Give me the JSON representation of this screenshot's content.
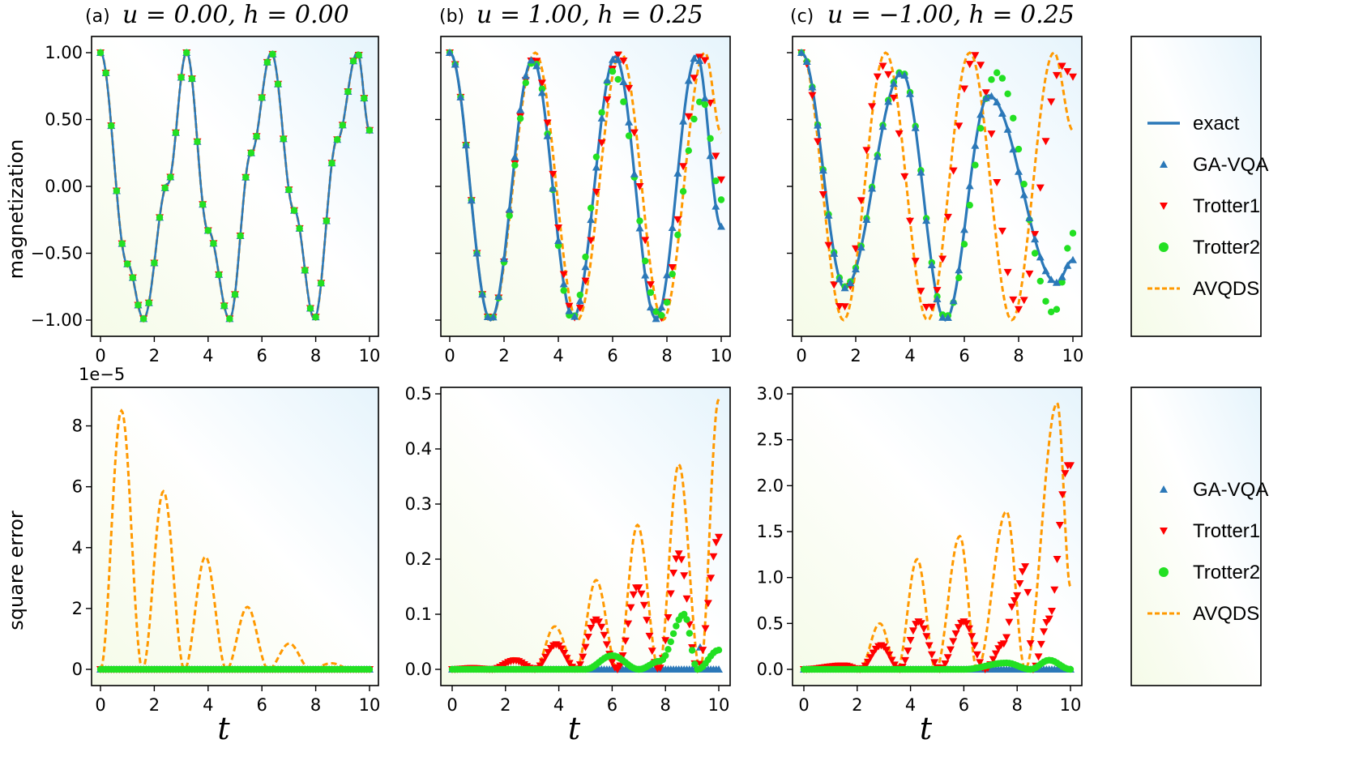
{
  "figure": {
    "ylabel_top": "magnetization",
    "ylabel_bottom": "square error",
    "xlabel": "t",
    "bottom_left_offset": "1e−5"
  },
  "panels": [
    {
      "tag": "(a)",
      "title": "u = 0.00, h = 0.00"
    },
    {
      "tag": "(b)",
      "title": "u = 1.00, h = 0.25"
    },
    {
      "tag": "(c)",
      "title": "u = −1.00, h = 0.25"
    }
  ],
  "legend_top": [
    "exact",
    "GA-VQA",
    "Trotter1",
    "Trotter2",
    "AVQDS"
  ],
  "legend_bottom": [
    "GA-VQA",
    "Trotter1",
    "Trotter2",
    "AVQDS"
  ],
  "colors": {
    "exact": "#2b78b8",
    "ga_vqa": "#2b78b8",
    "trotter1": "#ff0000",
    "trotter2": "#22e022",
    "avqds": "#ff9900"
  },
  "chart_data": [
    {
      "type": "line",
      "panel": "a-top",
      "ylabel": "magnetization",
      "xlabel": "t",
      "xlim": [
        0,
        10
      ],
      "ylim": [
        -1.0,
        1.0
      ],
      "xticks": [
        "0",
        "2",
        "4",
        "6",
        "8",
        "10"
      ],
      "yticks": [
        "1.00",
        "0.50",
        "0.00",
        "−0.50",
        "−1.00"
      ],
      "series": [
        {
          "name": "exact",
          "style": "solid",
          "x": [
            0,
            1.0,
            1.6,
            2.5,
            3.2,
            4.0,
            4.8,
            5.6,
            6.35,
            7.2,
            7.95,
            8.8,
            9.55,
            10
          ],
          "y": [
            1.0,
            -0.58,
            -0.99,
            0.02,
            1.0,
            -0.33,
            -0.99,
            0.25,
            1.0,
            -0.18,
            -0.99,
            0.35,
            1.0,
            0.42
          ]
        },
        {
          "name": "GA-VQA",
          "style": "marker",
          "note": "identical to exact"
        },
        {
          "name": "Trotter1",
          "style": "marker",
          "note": "identical to exact"
        },
        {
          "name": "Trotter2",
          "style": "marker",
          "note": "identical to exact"
        },
        {
          "name": "AVQDS",
          "style": "dashed",
          "note": "identical to exact"
        }
      ]
    },
    {
      "type": "line",
      "panel": "b-top",
      "xlim": [
        0,
        10
      ],
      "ylim": [
        -1.0,
        1.0
      ],
      "xticks": [
        "0",
        "2",
        "4",
        "6",
        "8",
        "10"
      ],
      "series": [
        {
          "name": "exact",
          "x": [
            0,
            1.5,
            3.05,
            4.55,
            6.1,
            7.6,
            9.1,
            10
          ],
          "y": [
            1.0,
            -1.0,
            0.95,
            -0.98,
            0.97,
            -0.99,
            0.98,
            -0.3
          ]
        },
        {
          "name": "GA-VQA",
          "note": "follows exact"
        },
        {
          "name": "Trotter1",
          "x": [
            0,
            1.5,
            3.1,
            4.6,
            6.25,
            7.75,
            9.3,
            10
          ],
          "y": [
            1.0,
            -1.0,
            0.96,
            -0.98,
            0.99,
            -0.99,
            0.99,
            0.05
          ]
        },
        {
          "name": "Trotter2",
          "x": [
            0,
            1.5,
            3.1,
            4.5,
            6.0,
            7.75,
            9.3,
            10
          ],
          "y": [
            1.0,
            -1.0,
            0.94,
            -0.99,
            0.86,
            -0.97,
            0.65,
            -0.1
          ]
        },
        {
          "name": "AVQDS",
          "x": [
            0,
            1.5,
            3.15,
            4.7,
            6.3,
            7.85,
            9.4,
            10
          ],
          "y": [
            1.0,
            -1.0,
            1.0,
            -1.0,
            1.0,
            -1.0,
            1.0,
            0.4
          ]
        }
      ]
    },
    {
      "type": "line",
      "panel": "c-top",
      "xlim": [
        0,
        10
      ],
      "ylim": [
        -1.0,
        1.0
      ],
      "xticks": [
        "0",
        "2",
        "4",
        "6",
        "8",
        "10"
      ],
      "series": [
        {
          "name": "exact",
          "x": [
            0,
            1.6,
            3.7,
            5.3,
            6.9,
            9.4,
            10
          ],
          "y": [
            1.0,
            -0.76,
            0.85,
            -1.0,
            0.68,
            -0.72,
            -0.55
          ]
        },
        {
          "name": "GA-VQA",
          "note": "follows exact"
        },
        {
          "name": "Trotter1",
          "x": [
            0,
            1.5,
            3.0,
            4.7,
            6.4,
            8.0,
            9.6,
            10
          ],
          "y": [
            1.0,
            -0.92,
            0.9,
            -0.92,
            0.98,
            -0.92,
            0.9,
            0.82
          ]
        },
        {
          "name": "Trotter2",
          "x": [
            0,
            1.6,
            3.7,
            5.3,
            7.2,
            9.3,
            10
          ],
          "y": [
            1.0,
            -0.75,
            0.86,
            -0.98,
            0.85,
            -0.95,
            -0.35
          ]
        },
        {
          "name": "AVQDS",
          "x": [
            0,
            1.55,
            3.1,
            4.65,
            6.2,
            7.75,
            9.3,
            10
          ],
          "y": [
            1.0,
            -1.0,
            1.0,
            -1.0,
            1.0,
            -1.0,
            1.0,
            0.42
          ]
        }
      ]
    },
    {
      "type": "line",
      "panel": "a-bottom",
      "ylabel": "square error",
      "xlabel": "t",
      "xlim": [
        0,
        10
      ],
      "ylim": [
        0,
        9e-05
      ],
      "offset_text": "1e−5",
      "xticks": [
        "0",
        "2",
        "4",
        "6",
        "8",
        "10"
      ],
      "yticks": [
        "0",
        "2",
        "4",
        "6",
        "8"
      ],
      "series": [
        {
          "name": "AVQDS",
          "x": [
            0,
            0.78,
            1.56,
            2.34,
            3.12,
            3.9,
            4.68,
            5.46,
            6.24,
            7.02,
            7.8,
            8.58,
            9.36,
            10
          ],
          "y": [
            0,
            8.5e-05,
            0,
            5.85e-05,
            0,
            3.7e-05,
            0,
            2.05e-05,
            0,
            8.5e-06,
            0,
            2e-06,
            0,
            0
          ]
        },
        {
          "name": "GA-VQA",
          "y_const": 0
        },
        {
          "name": "Trotter1",
          "y_const": 0
        },
        {
          "name": "Trotter2",
          "y_const": 0
        }
      ]
    },
    {
      "type": "line",
      "panel": "b-bottom",
      "xlabel": "t",
      "xlim": [
        0,
        10
      ],
      "ylim": [
        0,
        0.5
      ],
      "xticks": [
        "0",
        "2",
        "4",
        "6",
        "8",
        "10"
      ],
      "yticks": [
        "0.0",
        "0.1",
        "0.2",
        "0.3",
        "0.4",
        "0.5"
      ],
      "series": [
        {
          "name": "AVQDS",
          "x": [
            0,
            0.75,
            1.5,
            2.3,
            3.1,
            3.85,
            4.65,
            5.4,
            6.2,
            6.95,
            7.75,
            8.5,
            9.3,
            10
          ],
          "y": [
            0,
            0.002,
            0,
            0.02,
            0,
            0.078,
            0,
            0.162,
            0,
            0.262,
            0,
            0.372,
            0,
            0.49
          ]
        },
        {
          "name": "Trotter1",
          "x": [
            0,
            0.75,
            1.5,
            2.35,
            3.1,
            3.9,
            4.65,
            5.4,
            6.2,
            6.95,
            7.75,
            8.5,
            9.2,
            10
          ],
          "y": [
            0,
            0.002,
            0,
            0.016,
            0,
            0.045,
            0,
            0.09,
            0,
            0.15,
            0,
            0.21,
            0,
            0.24
          ]
        },
        {
          "name": "Trotter2",
          "x": [
            0,
            5.0,
            6.0,
            7.0,
            7.8,
            8.7,
            9.2,
            10
          ],
          "y": [
            0,
            0.0,
            0.025,
            0.0,
            0.015,
            0.1,
            0.0,
            0.035
          ]
        },
        {
          "name": "GA-VQA",
          "x": [
            0,
            9.2,
            9.3,
            9.4,
            10
          ],
          "y": [
            0,
            0,
            0.04,
            0,
            0
          ]
        }
      ]
    },
    {
      "type": "line",
      "panel": "c-bottom",
      "xlabel": "t",
      "xlim": [
        0,
        10
      ],
      "ylim": [
        0,
        3.0
      ],
      "xticks": [
        "0",
        "2",
        "4",
        "6",
        "8",
        "10"
      ],
      "yticks": [
        "0.0",
        "0.5",
        "1.0",
        "1.5",
        "2.0",
        "2.5",
        "3.0"
      ],
      "series": [
        {
          "name": "AVQDS",
          "x": [
            0,
            1.5,
            2.1,
            2.85,
            3.5,
            4.25,
            4.95,
            5.85,
            6.5,
            7.6,
            8.3,
            9.5,
            10
          ],
          "y": [
            0,
            0.05,
            0,
            0.5,
            0,
            1.2,
            0,
            1.45,
            0,
            1.72,
            0,
            2.9,
            0.9
          ]
        },
        {
          "name": "Trotter1",
          "x": [
            0,
            1.5,
            2.1,
            2.9,
            3.6,
            4.3,
            5.1,
            6.0,
            6.8,
            7.5,
            7.9,
            8.3,
            8.6,
            9.2,
            9.9
          ],
          "y": [
            0,
            0.04,
            0,
            0.26,
            0,
            0.52,
            0,
            0.52,
            0,
            0.28,
            0.75,
            1.12,
            0,
            0.55,
            2.22
          ]
        },
        {
          "name": "Trotter2",
          "x": [
            0,
            6.0,
            7.6,
            8.5,
            9.2,
            10
          ],
          "y": [
            0,
            0.0,
            0.07,
            0.0,
            0.1,
            0.0
          ]
        },
        {
          "name": "GA-VQA",
          "y_const": 0
        }
      ]
    }
  ]
}
